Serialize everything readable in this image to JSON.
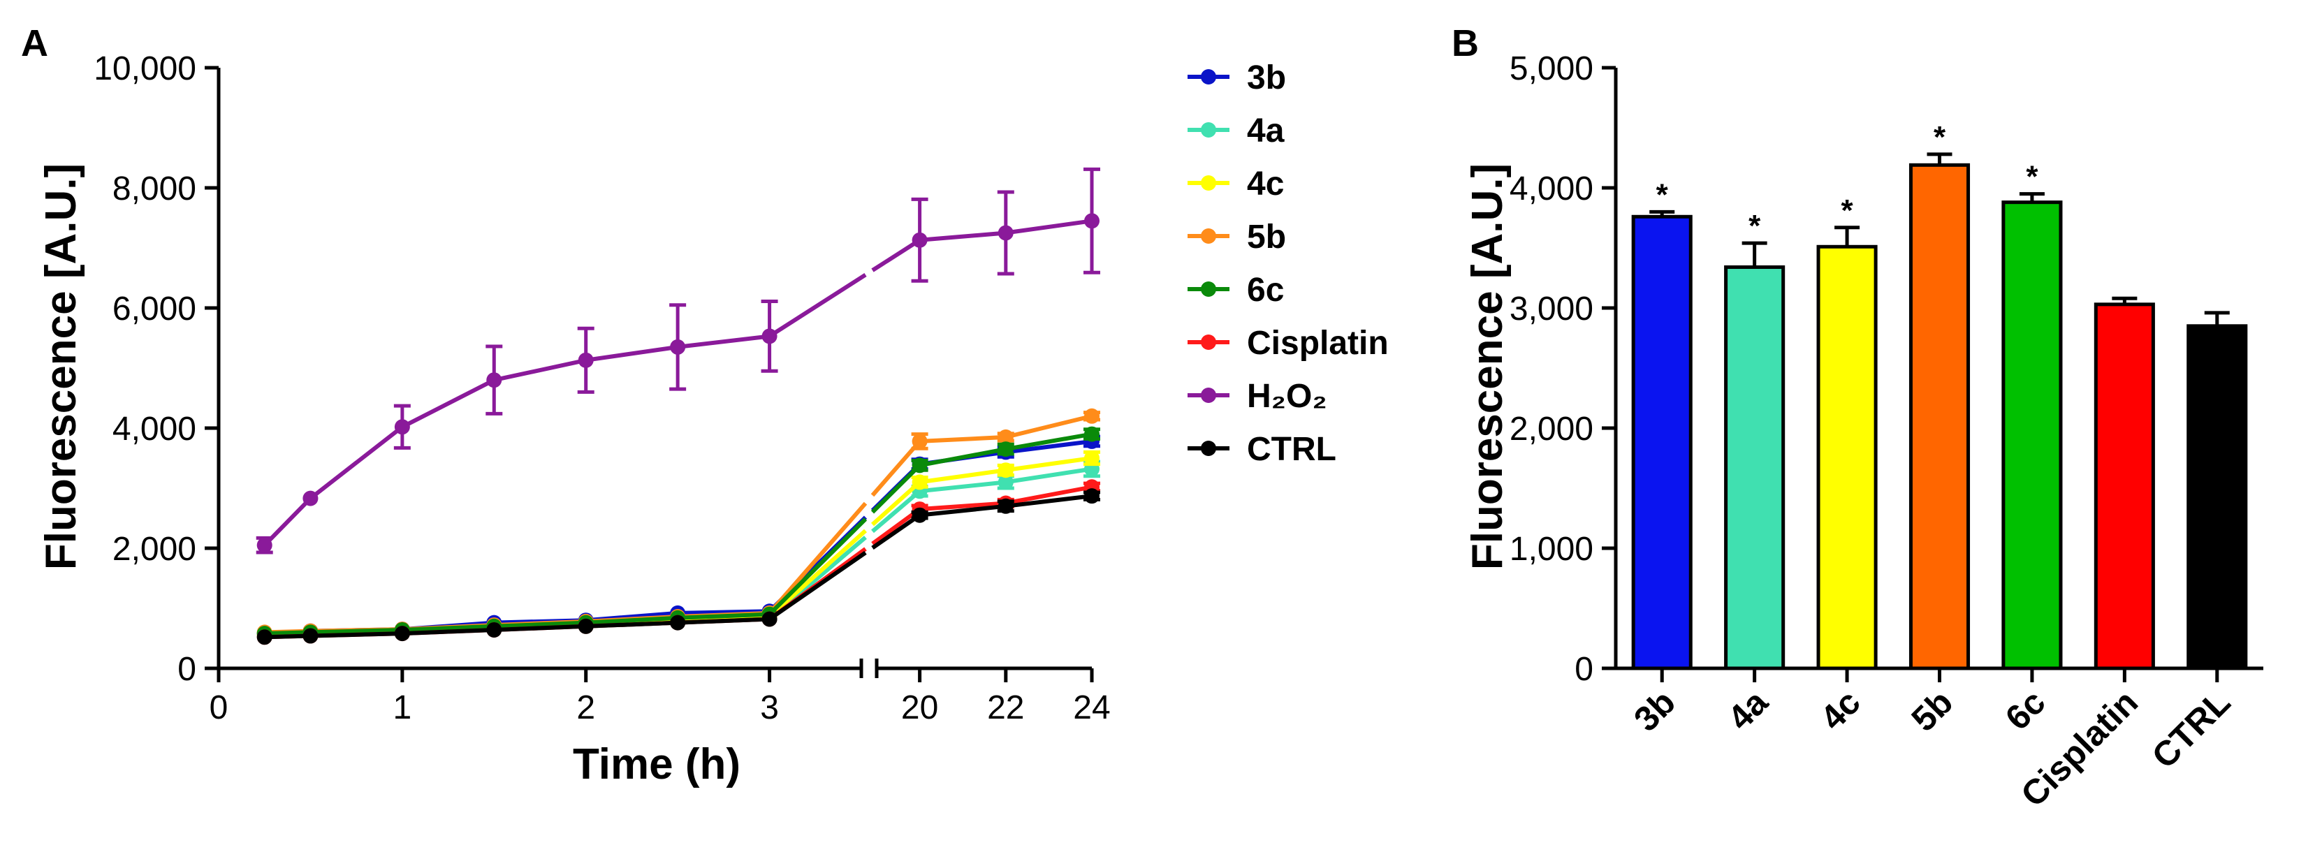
{
  "chart_data": [
    {
      "panel": "A",
      "type": "line",
      "xlabel": "Time (h)",
      "ylabel": "Fluorescence [A.U.]",
      "ylim": [
        0,
        10000
      ],
      "yticks": [
        0,
        2000,
        4000,
        6000,
        8000,
        10000
      ],
      "ytick_labels": [
        "0",
        "2,000",
        "4,000",
        "6,000",
        "8,000",
        "10,000"
      ],
      "x_segments": [
        {
          "range": [
            0,
            3.5
          ],
          "ticks": [
            0,
            1,
            2,
            3
          ],
          "tick_labels": [
            "0",
            "1",
            "2",
            "3"
          ]
        },
        {
          "range": [
            19,
            24
          ],
          "ticks": [
            20,
            22,
            24
          ],
          "tick_labels": [
            "20",
            "22",
            "24"
          ]
        }
      ],
      "legend_position": "right",
      "series": [
        {
          "name": "3b",
          "color": "#0a14c8",
          "early_x": [
            0.25,
            0.5,
            1,
            1.5,
            2,
            2.5,
            3
          ],
          "early_y": [
            580,
            620,
            650,
            760,
            800,
            920,
            950
          ],
          "late_x": [
            20,
            22,
            24
          ],
          "late_y": [
            3400,
            3600,
            3780
          ],
          "early_err": [
            0,
            0,
            0,
            0,
            0,
            0,
            0
          ],
          "late_err": [
            80,
            80,
            80
          ]
        },
        {
          "name": "4a",
          "color": "#40e0b0",
          "early_x": [
            0.25,
            0.5,
            1,
            1.5,
            2,
            2.5,
            3
          ],
          "early_y": [
            540,
            560,
            590,
            650,
            700,
            760,
            820
          ],
          "late_x": [
            20,
            22,
            24
          ],
          "late_y": [
            2950,
            3100,
            3320
          ],
          "early_err": [
            0,
            0,
            0,
            0,
            0,
            0,
            0
          ],
          "late_err": [
            80,
            100,
            120
          ]
        },
        {
          "name": "4c",
          "color": "#ffff00",
          "early_x": [
            0.25,
            0.5,
            1,
            1.5,
            2,
            2.5,
            3
          ],
          "early_y": [
            560,
            580,
            600,
            680,
            720,
            780,
            860
          ],
          "late_x": [
            20,
            22,
            24
          ],
          "late_y": [
            3100,
            3300,
            3500
          ],
          "early_err": [
            0,
            0,
            0,
            0,
            0,
            0,
            0
          ],
          "late_err": [
            80,
            80,
            100
          ]
        },
        {
          "name": "5b",
          "color": "#ff8c1a",
          "early_x": [
            0.25,
            0.5,
            1,
            1.5,
            2,
            2.5,
            3
          ],
          "early_y": [
            600,
            620,
            650,
            720,
            780,
            860,
            920
          ],
          "late_x": [
            20,
            22,
            24
          ],
          "late_y": [
            3780,
            3850,
            4200
          ],
          "early_err": [
            0,
            0,
            0,
            0,
            0,
            0,
            0
          ],
          "late_err": [
            120,
            60,
            60
          ]
        },
        {
          "name": "6c",
          "color": "#0a8a0a",
          "early_x": [
            0.25,
            0.5,
            1,
            1.5,
            2,
            2.5,
            3
          ],
          "early_y": [
            580,
            600,
            640,
            700,
            760,
            840,
            900
          ],
          "late_x": [
            20,
            22,
            24
          ],
          "late_y": [
            3380,
            3650,
            3900
          ],
          "early_err": [
            0,
            0,
            0,
            0,
            0,
            0,
            0
          ],
          "late_err": [
            80,
            80,
            80
          ]
        },
        {
          "name": "Cisplatin",
          "color": "#ff1a1a",
          "early_x": [
            0.25,
            0.5,
            1,
            1.5,
            2,
            2.5,
            3
          ],
          "early_y": [
            520,
            540,
            580,
            640,
            700,
            760,
            820
          ],
          "late_x": [
            20,
            22,
            24
          ],
          "late_y": [
            2650,
            2750,
            3020
          ],
          "early_err": [
            0,
            0,
            0,
            0,
            0,
            0,
            0
          ],
          "late_err": [
            60,
            60,
            60
          ]
        },
        {
          "name": "H₂O₂",
          "color": "#8a1a9a",
          "early_x": [
            0.25,
            0.5,
            1,
            1.5,
            2,
            2.5,
            3
          ],
          "early_y": [
            2050,
            2830,
            4020,
            4800,
            5130,
            5350,
            5530
          ],
          "late_x": [
            20,
            22,
            24
          ],
          "late_y": [
            7130,
            7250,
            7450
          ],
          "early_err": [
            120,
            0,
            350,
            560,
            530,
            700,
            580
          ],
          "late_err": [
            680,
            680,
            860
          ]
        },
        {
          "name": "CTRL",
          "color": "#000000",
          "early_x": [
            0.25,
            0.5,
            1,
            1.5,
            2,
            2.5,
            3
          ],
          "early_y": [
            520,
            540,
            580,
            640,
            700,
            760,
            820
          ],
          "late_x": [
            20,
            22,
            24
          ],
          "late_y": [
            2550,
            2700,
            2870
          ],
          "early_err": [
            0,
            0,
            0,
            0,
            0,
            0,
            0
          ],
          "late_err": [
            50,
            80,
            60
          ]
        }
      ]
    },
    {
      "panel": "B",
      "type": "bar",
      "ylabel": "Fluorescence [A.U.]",
      "ylim": [
        0,
        5000
      ],
      "yticks": [
        0,
        1000,
        2000,
        3000,
        4000,
        5000
      ],
      "ytick_labels": [
        "0",
        "1,000",
        "2,000",
        "3,000",
        "4,000",
        "5,000"
      ],
      "categories": [
        "3b",
        "4a",
        "4c",
        "5b",
        "6c",
        "Cisplatin",
        "CTRL"
      ],
      "values": [
        3760,
        3340,
        3510,
        4190,
        3880,
        3030,
        2850
      ],
      "errors": [
        40,
        200,
        160,
        90,
        70,
        50,
        110
      ],
      "colors": [
        "#0a14f0",
        "#40e0b0",
        "#ffff00",
        "#ff6600",
        "#00c000",
        "#ff0000",
        "#000000"
      ],
      "significance": [
        "*",
        "*",
        "*",
        "*",
        "*",
        "",
        ""
      ]
    }
  ]
}
